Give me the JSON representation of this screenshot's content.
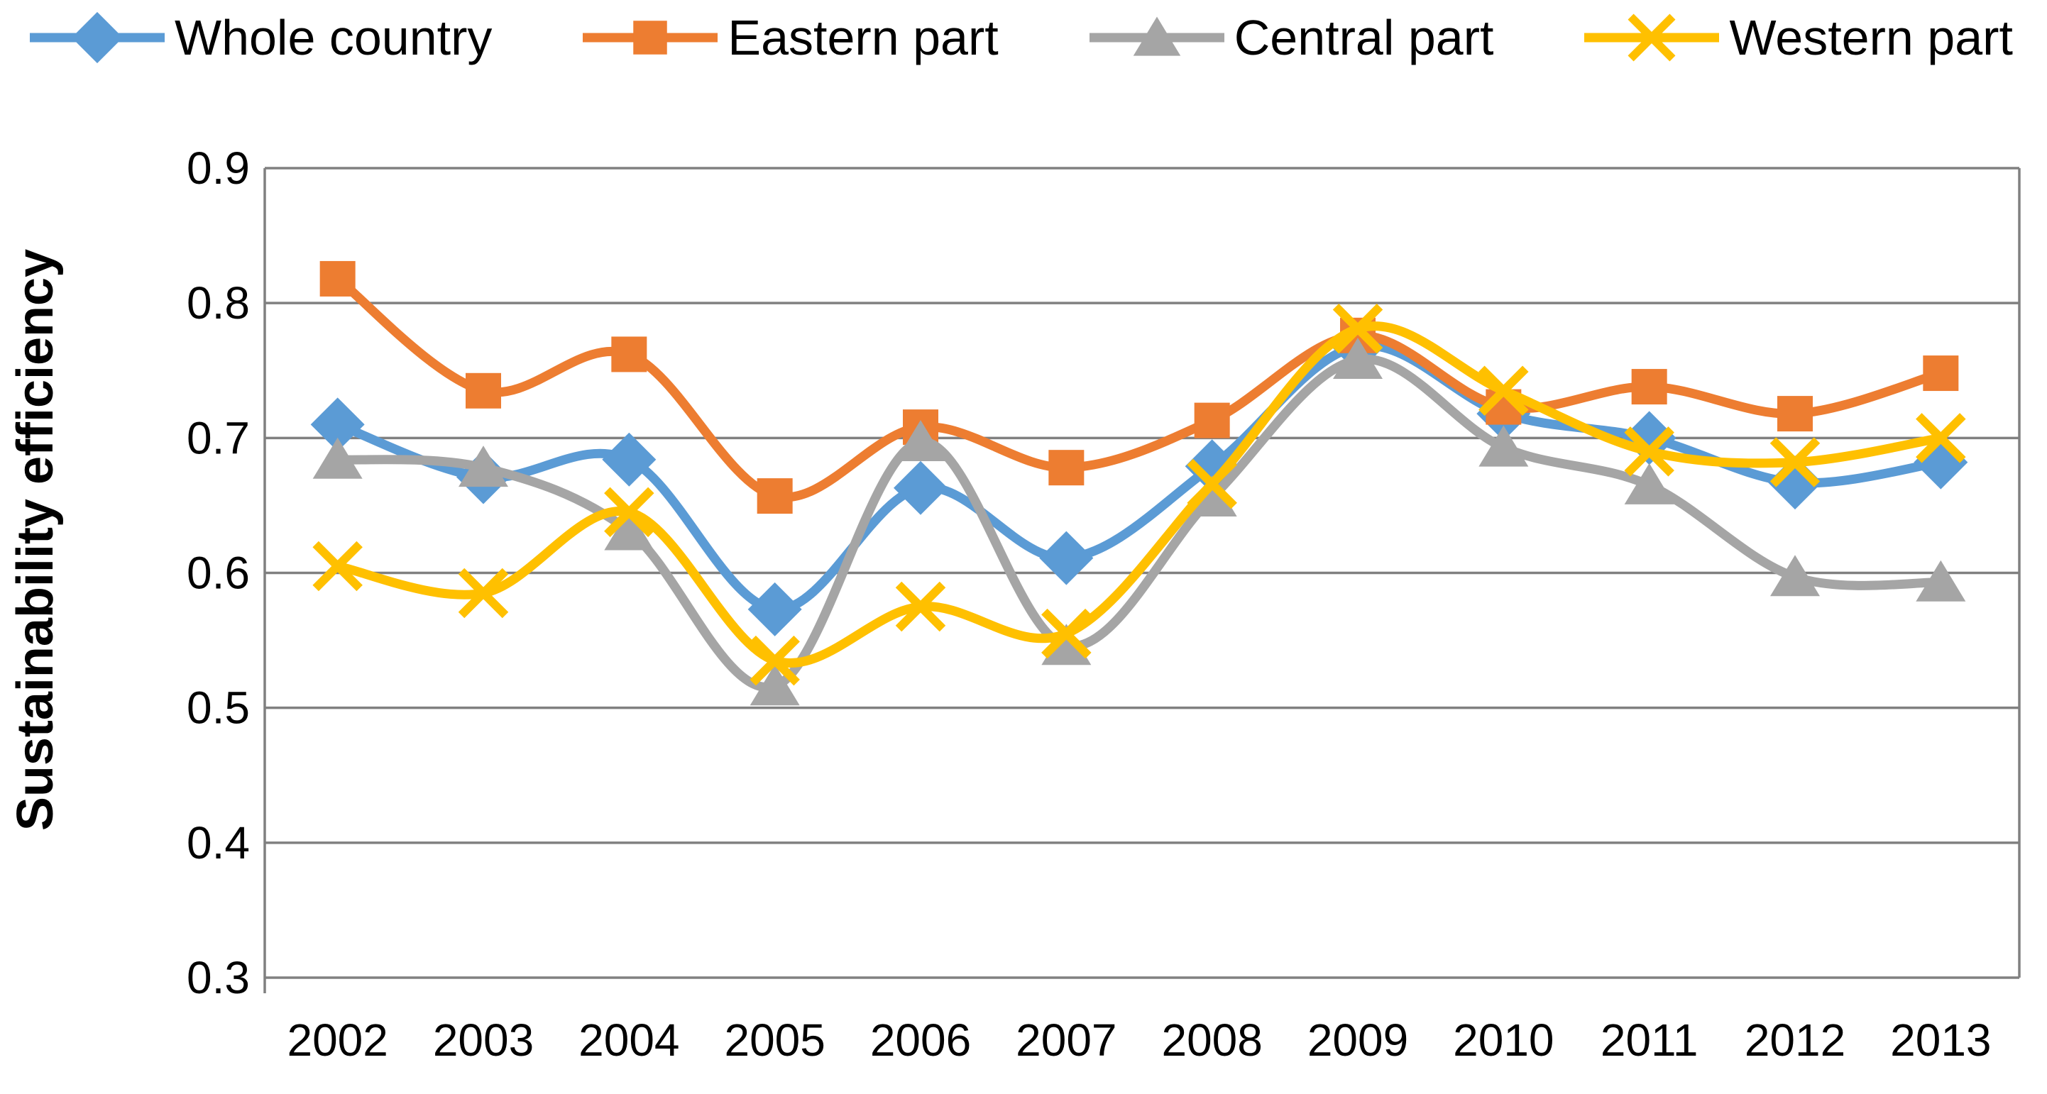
{
  "chart_data": {
    "type": "line",
    "title": "",
    "xlabel": "",
    "ylabel": "Sustainability efficiency",
    "x": [
      "2002",
      "2003",
      "2004",
      "2005",
      "2006",
      "2007",
      "2008",
      "2009",
      "2010",
      "2011",
      "2012",
      "2013"
    ],
    "ylim": [
      0.3,
      0.9
    ],
    "yticks": [
      "0.3",
      "0.4",
      "0.5",
      "0.6",
      "0.7",
      "0.8",
      "0.9"
    ],
    "grid": true,
    "legend_position": "top",
    "line_style": "smooth",
    "gridline_color": "#808080",
    "series": [
      {
        "name": "Whole country",
        "color": "#5B9BD5",
        "marker": "diamond",
        "values": [
          0.71,
          0.671,
          0.684,
          0.573,
          0.663,
          0.611,
          0.679,
          0.768,
          0.718,
          0.7,
          0.667,
          0.682
        ]
      },
      {
        "name": "Eastern part",
        "color": "#ED7D31",
        "marker": "square",
        "values": [
          0.818,
          0.735,
          0.762,
          0.657,
          0.708,
          0.678,
          0.713,
          0.776,
          0.723,
          0.738,
          0.718,
          0.748
        ]
      },
      {
        "name": "Central part",
        "color": "#A5A5A5",
        "marker": "triangle",
        "values": [
          0.684,
          0.678,
          0.631,
          0.516,
          0.697,
          0.546,
          0.656,
          0.758,
          0.693,
          0.665,
          0.597,
          0.593
        ]
      },
      {
        "name": "Western part",
        "color": "#FFC000",
        "marker": "x",
        "values": [
          0.605,
          0.585,
          0.645,
          0.535,
          0.575,
          0.555,
          0.666,
          0.781,
          0.735,
          0.69,
          0.682,
          0.7
        ]
      }
    ]
  }
}
